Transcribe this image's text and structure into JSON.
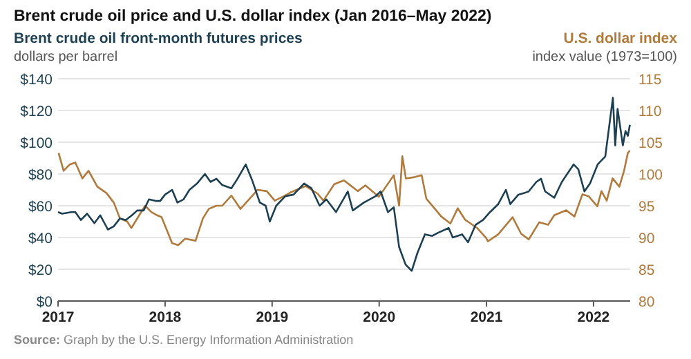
{
  "chart_data": {
    "type": "line",
    "title": "Brent crude oil price and U.S. dollar index (Jan 2016–May 2022)",
    "ylabel": "Brent crude oil front-month futures prices\ndollars per barrel",
    "y2label": "U.S. dollar index\nindex value (1973=100)",
    "xlim": [
      "2017-01-01",
      "2022-05-06"
    ],
    "xticks": [
      "2017",
      "2018",
      "2019",
      "2020",
      "2021",
      "2022"
    ],
    "ylim": [
      0,
      140
    ],
    "yticks": [
      {
        "value": 0,
        "label": "$0"
      },
      {
        "value": 20,
        "label": "$20"
      },
      {
        "value": 40,
        "label": "$40"
      },
      {
        "value": 60,
        "label": "$60"
      },
      {
        "value": 80,
        "label": "$80"
      },
      {
        "value": 100,
        "label": "$100"
      },
      {
        "value": 120,
        "label": "$120"
      },
      {
        "value": 140,
        "label": "$140"
      }
    ],
    "y2lim": [
      80,
      115
    ],
    "y2ticks": [
      80,
      85,
      90,
      95,
      100,
      105,
      110,
      115
    ],
    "grid": "y",
    "line_style": "solid",
    "annotations": [
      "Source: Graph by the U.S. Energy Information Administration"
    ],
    "series": [
      {
        "color": "#b07a3d",
        "axis": "y2",
        "x": [
          "2017-01-03",
          "2017-01-20",
          "2017-02-10",
          "2017-03-01",
          "2017-03-25",
          "2017-04-15",
          "2017-05-15",
          "2017-06-15",
          "2017-07-10",
          "2017-07-31",
          "2017-08-25",
          "2017-09-08",
          "2017-10-25",
          "2017-11-15",
          "2017-12-05",
          "2017-12-20",
          "2018-01-25",
          "2018-02-15",
          "2018-03-10",
          "2018-04-15",
          "2018-05-10",
          "2018-05-30",
          "2018-06-25",
          "2018-07-15",
          "2018-08-15",
          "2018-09-15",
          "2018-10-30",
          "2018-11-12",
          "2018-12-14",
          "2019-01-10",
          "2019-02-10",
          "2019-03-10",
          "2019-04-25",
          "2019-06-05",
          "2019-06-25",
          "2019-08-01",
          "2019-09-03",
          "2019-10-20",
          "2019-11-15",
          "2019-12-31",
          "2020-02-20",
          "2020-03-09",
          "2020-03-20",
          "2020-04-01",
          "2020-04-30",
          "2020-05-25",
          "2020-06-10",
          "2020-07-31",
          "2020-08-31",
          "2020-09-25",
          "2020-10-20",
          "2020-11-30",
          "2020-12-31",
          "2021-01-06",
          "2021-02-10",
          "2021-03-31",
          "2021-04-29",
          "2021-05-25",
          "2021-06-30",
          "2021-07-30",
          "2021-08-20",
          "2021-09-30",
          "2021-10-28",
          "2021-11-24",
          "2021-12-15",
          "2022-01-14",
          "2022-01-28",
          "2022-02-15",
          "2022-03-07",
          "2022-03-30",
          "2022-04-15",
          "2022-04-28",
          "2022-05-05"
        ],
        "values": [
          103.3,
          100.5,
          101.5,
          101.8,
          99.3,
          100.5,
          98,
          97,
          95.5,
          93,
          92.5,
          91.5,
          95,
          94,
          93.5,
          93.2,
          89.1,
          88.8,
          89.8,
          89.5,
          93,
          94.5,
          95,
          95,
          96.6,
          94.5,
          96.8,
          97.5,
          97.3,
          95.8,
          96.5,
          97.2,
          98.1,
          96.9,
          95.8,
          98.4,
          99,
          97.3,
          98.2,
          96.4,
          99.8,
          95,
          102.8,
          99.3,
          99.5,
          99.8,
          96.1,
          93.3,
          92.2,
          94.6,
          92.8,
          91.5,
          89.9,
          89.4,
          90.5,
          93.2,
          90.6,
          89.7,
          92.4,
          92,
          93.5,
          94.3,
          93.3,
          96.8,
          96.5,
          94.9,
          97.3,
          95.8,
          99.3,
          98,
          100.5,
          103.3,
          103.7
        ]
      },
      {
        "color": "#1c3f52",
        "x": [
          "2017-01-01",
          "2017-01-15",
          "2017-02-15",
          "2017-03-01",
          "2017-03-20",
          "2017-04-10",
          "2017-05-05",
          "2017-05-25",
          "2017-06-20",
          "2017-07-10",
          "2017-07-31",
          "2017-08-20",
          "2017-09-10",
          "2017-09-28",
          "2017-10-20",
          "2017-11-07",
          "2017-11-30",
          "2017-12-15",
          "2018-01-01",
          "2018-01-25",
          "2018-02-12",
          "2018-03-05",
          "2018-03-25",
          "2018-04-20",
          "2018-05-17",
          "2018-06-05",
          "2018-06-25",
          "2018-07-15",
          "2018-08-15",
          "2018-09-05",
          "2018-10-03",
          "2018-10-25",
          "2018-11-20",
          "2018-12-10",
          "2018-12-24",
          "2019-01-15",
          "2019-02-15",
          "2019-03-15",
          "2019-04-20",
          "2019-05-15",
          "2019-06-12",
          "2019-07-05",
          "2019-08-07",
          "2019-09-16",
          "2019-10-03",
          "2019-11-10",
          "2019-12-20",
          "2020-01-06",
          "2020-01-31",
          "2020-02-20",
          "2020-03-09",
          "2020-03-31",
          "2020-04-21",
          "2020-05-10",
          "2020-06-05",
          "2020-06-30",
          "2020-07-20",
          "2020-08-25",
          "2020-09-08",
          "2020-10-10",
          "2020-10-30",
          "2020-11-25",
          "2020-12-20",
          "2021-01-13",
          "2021-02-10",
          "2021-03-08",
          "2021-03-23",
          "2021-04-20",
          "2021-05-10",
          "2021-05-25",
          "2021-06-20",
          "2021-07-06",
          "2021-07-20",
          "2021-08-20",
          "2021-09-15",
          "2021-10-25",
          "2021-11-10",
          "2021-12-01",
          "2021-12-20",
          "2022-01-15",
          "2022-02-10",
          "2022-03-08",
          "2022-03-16",
          "2022-03-24",
          "2022-04-11",
          "2022-04-20",
          "2022-04-28",
          "2022-05-05"
        ],
        "values": [
          56,
          55,
          56,
          56,
          51,
          55,
          49,
          54,
          45,
          47,
          52,
          51,
          54,
          57,
          57,
          64,
          63,
          63,
          67,
          70,
          62,
          64,
          70,
          74,
          80,
          75,
          77,
          73,
          71,
          77,
          86,
          76,
          62,
          60,
          50,
          60,
          66,
          67,
          74,
          71,
          60,
          64,
          56,
          69,
          57,
          62,
          66,
          69,
          56,
          59,
          34,
          23,
          19,
          30,
          42,
          41,
          43,
          46,
          40,
          42,
          37,
          48,
          51,
          56,
          61,
          70,
          61,
          67,
          68,
          69,
          75,
          77,
          69,
          65,
          75,
          86,
          83,
          69,
          74,
          86,
          91,
          128,
          98,
          121,
          98,
          107,
          104,
          111
        ]
      }
    ]
  }
}
